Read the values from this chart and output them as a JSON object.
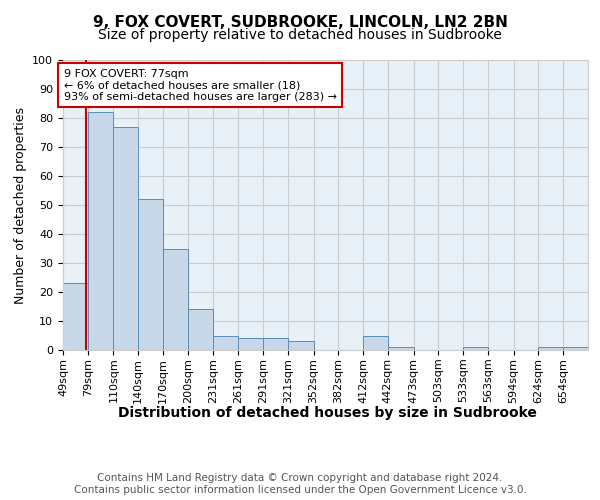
{
  "title1": "9, FOX COVERT, SUDBROOKE, LINCOLN, LN2 2BN",
  "title2": "Size of property relative to detached houses in Sudbrooke",
  "xlabel": "Distribution of detached houses by size in Sudbrooke",
  "ylabel": "Number of detached properties",
  "bin_labels": [
    "49sqm",
    "79sqm",
    "110sqm",
    "140sqm",
    "170sqm",
    "200sqm",
    "231sqm",
    "261sqm",
    "291sqm",
    "321sqm",
    "352sqm",
    "382sqm",
    "412sqm",
    "442sqm",
    "473sqm",
    "503sqm",
    "533sqm",
    "563sqm",
    "594sqm",
    "624sqm",
    "654sqm"
  ],
  "bin_edges": [
    49,
    79,
    110,
    140,
    170,
    200,
    231,
    261,
    291,
    321,
    352,
    382,
    412,
    442,
    473,
    503,
    533,
    563,
    594,
    624,
    654
  ],
  "bar_heights": [
    23,
    82,
    77,
    52,
    35,
    14,
    5,
    4,
    4,
    3,
    0,
    0,
    5,
    1,
    0,
    0,
    1,
    0,
    0,
    1,
    1
  ],
  "bar_color": "#c8d8e8",
  "bar_edge_color": "#5b8db8",
  "property_size": 77,
  "red_line_color": "#cc0000",
  "annotation_text": "9 FOX COVERT: 77sqm\n← 6% of detached houses are smaller (18)\n93% of semi-detached houses are larger (283) →",
  "annotation_box_color": "#ffffff",
  "annotation_border_color": "#cc0000",
  "ylim": [
    0,
    100
  ],
  "yticks": [
    0,
    10,
    20,
    30,
    40,
    50,
    60,
    70,
    80,
    90,
    100
  ],
  "grid_color": "#cccccc",
  "bg_color": "#e8f0f8",
  "footer_text": "Contains HM Land Registry data © Crown copyright and database right 2024.\nContains public sector information licensed under the Open Government Licence v3.0.",
  "title1_fontsize": 11,
  "title2_fontsize": 10,
  "xlabel_fontsize": 10,
  "ylabel_fontsize": 9,
  "tick_fontsize": 8,
  "annotation_fontsize": 8,
  "footer_fontsize": 7.5
}
